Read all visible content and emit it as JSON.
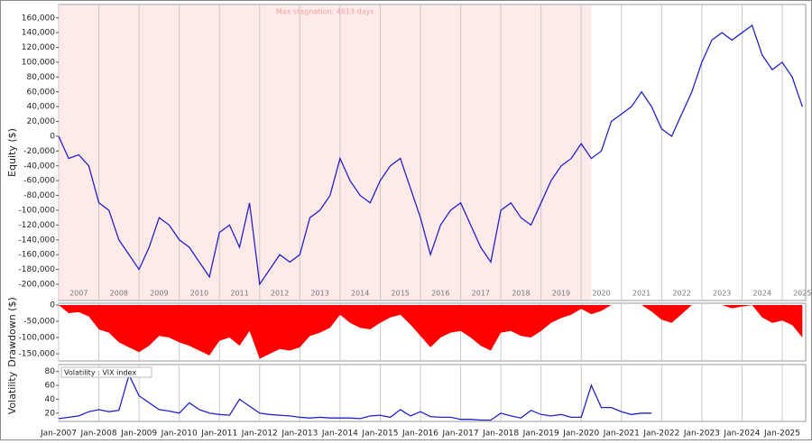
{
  "chart_data": [
    {
      "type": "line",
      "y_label": "Equity ($)",
      "color": "#2222cc",
      "stagnation": {
        "label": "Max stagnation: 4813 days",
        "start": "2007-01",
        "end": "2020-04"
      },
      "year_labels": [
        "2007",
        "2008",
        "2009",
        "2010",
        "2011",
        "2012",
        "2013",
        "2014",
        "2015",
        "2016",
        "2017",
        "2018",
        "2019",
        "2020",
        "2021",
        "2022",
        "2023",
        "2024",
        "2025"
      ],
      "x": [
        "2007-01",
        "2007-04",
        "2007-07",
        "2007-10",
        "2008-01",
        "2008-04",
        "2008-07",
        "2008-10",
        "2009-01",
        "2009-04",
        "2009-07",
        "2009-10",
        "2010-01",
        "2010-04",
        "2010-07",
        "2010-10",
        "2011-01",
        "2011-04",
        "2011-07",
        "2011-10",
        "2012-01",
        "2012-04",
        "2012-07",
        "2012-10",
        "2013-01",
        "2013-04",
        "2013-07",
        "2013-10",
        "2014-01",
        "2014-04",
        "2014-07",
        "2014-10",
        "2015-01",
        "2015-04",
        "2015-07",
        "2015-10",
        "2016-01",
        "2016-04",
        "2016-07",
        "2016-10",
        "2017-01",
        "2017-04",
        "2017-07",
        "2017-10",
        "2018-01",
        "2018-04",
        "2018-07",
        "2018-10",
        "2019-01",
        "2019-04",
        "2019-07",
        "2019-10",
        "2020-01",
        "2020-04",
        "2020-07",
        "2020-10",
        "2021-01",
        "2021-04",
        "2021-07",
        "2021-10",
        "2022-01",
        "2022-04",
        "2022-07",
        "2022-10",
        "2023-01",
        "2023-04",
        "2023-07",
        "2023-10",
        "2024-01",
        "2024-04",
        "2024-07",
        "2024-10",
        "2025-01",
        "2025-04",
        "2025-07"
      ],
      "values": [
        0,
        -30000,
        -25000,
        -40000,
        -90000,
        -100000,
        -140000,
        -160000,
        -180000,
        -150000,
        -110000,
        -120000,
        -140000,
        -150000,
        -170000,
        -190000,
        -130000,
        -120000,
        -150000,
        -90000,
        -200000,
        -180000,
        -160000,
        -170000,
        -160000,
        -110000,
        -100000,
        -80000,
        -30000,
        -60000,
        -80000,
        -90000,
        -60000,
        -40000,
        -30000,
        -70000,
        -110000,
        -160000,
        -120000,
        -100000,
        -90000,
        -120000,
        -150000,
        -170000,
        -100000,
        -90000,
        -110000,
        -120000,
        -90000,
        -60000,
        -40000,
        -30000,
        -10000,
        -30000,
        -20000,
        20000,
        30000,
        40000,
        60000,
        40000,
        10000,
        0,
        30000,
        60000,
        100000,
        130000,
        140000,
        130000,
        140000,
        150000,
        110000,
        90000,
        100000,
        80000,
        40000
      ],
      "xlim": [
        "2007-01",
        "2025-08"
      ],
      "ylim": [
        -222000,
        178000
      ],
      "yticks": [
        {
          "value": 160000,
          "label": "160,000"
        },
        {
          "value": 140000,
          "label": "140,000"
        },
        {
          "value": 120000,
          "label": "120,000"
        },
        {
          "value": 100000,
          "label": "100,000"
        },
        {
          "value": 80000,
          "label": "80,000"
        },
        {
          "value": 60000,
          "label": "60,000"
        },
        {
          "value": 40000,
          "label": "40,000"
        },
        {
          "value": 20000,
          "label": "20,000"
        },
        0,
        {
          "value": -20000,
          "label": "-20,000"
        },
        {
          "value": -40000,
          "label": "-40,000"
        },
        {
          "value": -60000,
          "label": "-60,000"
        },
        {
          "value": -80000,
          "label": "-80,000"
        },
        {
          "value": -100000,
          "label": "-100,000"
        },
        {
          "value": -120000,
          "label": "-120,000"
        },
        {
          "value": -140000,
          "label": "-140,000"
        },
        {
          "value": -160000,
          "label": "-160,000"
        },
        {
          "value": -180000,
          "label": "-180,000"
        },
        {
          "value": -200000,
          "label": "-200,000"
        }
      ]
    },
    {
      "type": "area",
      "y_label": "Drawdown ($)",
      "color": "#ff0000",
      "x": [
        "2007-01",
        "2007-04",
        "2007-07",
        "2007-10",
        "2008-01",
        "2008-04",
        "2008-07",
        "2008-10",
        "2009-01",
        "2009-04",
        "2009-07",
        "2009-10",
        "2010-01",
        "2010-04",
        "2010-07",
        "2010-10",
        "2011-01",
        "2011-04",
        "2011-07",
        "2011-10",
        "2012-01",
        "2012-04",
        "2012-07",
        "2012-10",
        "2013-01",
        "2013-04",
        "2013-07",
        "2013-10",
        "2014-01",
        "2014-04",
        "2014-07",
        "2014-10",
        "2015-01",
        "2015-04",
        "2015-07",
        "2015-10",
        "2016-01",
        "2016-04",
        "2016-07",
        "2016-10",
        "2017-01",
        "2017-04",
        "2017-07",
        "2017-10",
        "2018-01",
        "2018-04",
        "2018-07",
        "2018-10",
        "2019-01",
        "2019-04",
        "2019-07",
        "2019-10",
        "2020-01",
        "2020-04",
        "2020-07",
        "2020-10",
        "2021-01",
        "2021-04",
        "2021-07",
        "2021-10",
        "2022-01",
        "2022-04",
        "2022-07",
        "2022-10",
        "2023-01",
        "2023-04",
        "2023-07",
        "2023-10",
        "2024-01",
        "2024-04",
        "2024-07",
        "2024-10",
        "2025-01",
        "2025-04",
        "2025-07"
      ],
      "values": [
        0,
        -25000,
        -22000,
        -35000,
        -75000,
        -85000,
        -115000,
        -130000,
        -145000,
        -125000,
        -95000,
        -100000,
        -115000,
        -125000,
        -140000,
        -155000,
        -110000,
        -100000,
        -125000,
        -80000,
        -165000,
        -150000,
        -135000,
        -140000,
        -130000,
        -95000,
        -85000,
        -70000,
        -30000,
        -55000,
        -70000,
        -75000,
        -55000,
        -38000,
        -30000,
        -60000,
        -95000,
        -130000,
        -100000,
        -85000,
        -80000,
        -100000,
        -125000,
        -140000,
        -85000,
        -80000,
        -95000,
        -100000,
        -80000,
        -55000,
        -40000,
        -30000,
        -12000,
        -28000,
        -18000,
        0,
        0,
        0,
        0,
        -20000,
        -45000,
        -55000,
        -28000,
        0,
        0,
        0,
        0,
        -10000,
        -5000,
        0,
        -38000,
        -55000,
        -48000,
        -62000,
        -100000
      ],
      "xlim": [
        "2007-01",
        "2025-08"
      ],
      "ylim": [
        -172000,
        5500
      ],
      "yticks": [
        0,
        {
          "value": -50000,
          "label": "-50,000"
        },
        {
          "value": -100000,
          "label": "-100,000"
        },
        {
          "value": -150000,
          "label": "-150,000"
        }
      ]
    },
    {
      "type": "line",
      "y_label": "Volatility",
      "legend": "Volatility : VIX index",
      "color": "#2222cc",
      "x": [
        "2007-01",
        "2007-04",
        "2007-07",
        "2007-10",
        "2008-01",
        "2008-04",
        "2008-07",
        "2008-10",
        "2009-01",
        "2009-04",
        "2009-07",
        "2009-10",
        "2010-01",
        "2010-04",
        "2010-07",
        "2010-10",
        "2011-01",
        "2011-04",
        "2011-07",
        "2011-10",
        "2012-01",
        "2012-04",
        "2012-07",
        "2012-10",
        "2013-01",
        "2013-04",
        "2013-07",
        "2013-10",
        "2014-01",
        "2014-04",
        "2014-07",
        "2014-10",
        "2015-01",
        "2015-04",
        "2015-07",
        "2015-10",
        "2016-01",
        "2016-04",
        "2016-07",
        "2016-10",
        "2017-01",
        "2017-04",
        "2017-07",
        "2017-10",
        "2018-01",
        "2018-04",
        "2018-07",
        "2018-10",
        "2019-01",
        "2019-04",
        "2019-07",
        "2019-10",
        "2020-01",
        "2020-04",
        "2020-07",
        "2020-10",
        "2021-01",
        "2021-04",
        "2021-07",
        "2021-10"
      ],
      "values": [
        12,
        14,
        16,
        22,
        25,
        22,
        24,
        75,
        45,
        35,
        25,
        23,
        20,
        35,
        25,
        20,
        18,
        17,
        40,
        30,
        20,
        18,
        17,
        16,
        14,
        13,
        14,
        13,
        13,
        13,
        12,
        16,
        17,
        14,
        25,
        16,
        22,
        15,
        14,
        14,
        11,
        11,
        10,
        10,
        20,
        16,
        13,
        24,
        18,
        16,
        18,
        14,
        14,
        60,
        28,
        28,
        22,
        18,
        20,
        20
      ],
      "xlim": [
        "2007-01",
        "2025-08"
      ],
      "ylim": [
        8,
        90
      ],
      "yticks": [
        20,
        40,
        60,
        80
      ],
      "xticks": [
        {
          "value": "2007-01",
          "label": "Jan-2007"
        },
        {
          "value": "2008-01",
          "label": "Jan-2008"
        },
        {
          "value": "2009-01",
          "label": "Jan-2009"
        },
        {
          "value": "2010-01",
          "label": "Jan-2010"
        },
        {
          "value": "2011-01",
          "label": "Jan-2011"
        },
        {
          "value": "2012-01",
          "label": "Jan-2012"
        },
        {
          "value": "2013-01",
          "label": "Jan-2013"
        },
        {
          "value": "2014-01",
          "label": "Jan-2014"
        },
        {
          "value": "2015-01",
          "label": "Jan-2015"
        },
        {
          "value": "2016-01",
          "label": "Jan-2016"
        },
        {
          "value": "2017-01",
          "label": "Jan-2017"
        },
        {
          "value": "2018-01",
          "label": "Jan-2018"
        },
        {
          "value": "2019-01",
          "label": "Jan-2019"
        },
        {
          "value": "2020-01",
          "label": "Jan-2020"
        },
        {
          "value": "2021-01",
          "label": "Jan-2021"
        },
        {
          "value": "2022-01",
          "label": "Jan-2022"
        },
        {
          "value": "2023-01",
          "label": "Jan-2023"
        },
        {
          "value": "2024-01",
          "label": "Jan-2024"
        },
        {
          "value": "2025-01",
          "label": "Jan-2025"
        }
      ]
    }
  ]
}
